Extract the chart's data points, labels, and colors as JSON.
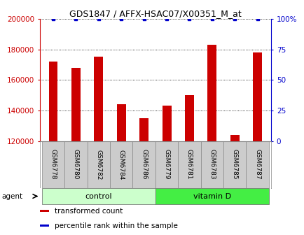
{
  "title": "GDS1847 / AFFX-HSAC07/X00351_M_at",
  "samples": [
    "GSM6778",
    "GSM6780",
    "GSM6782",
    "GSM6784",
    "GSM6786",
    "GSM6779",
    "GSM6781",
    "GSM6783",
    "GSM6785",
    "GSM6787"
  ],
  "bar_values": [
    172000,
    168000,
    175000,
    144000,
    135000,
    143000,
    150000,
    183000,
    124000,
    178000
  ],
  "percentile_values": [
    100,
    100,
    100,
    100,
    100,
    100,
    100,
    100,
    100,
    100
  ],
  "groups": [
    {
      "label": "control",
      "start": 0,
      "end": 4,
      "color": "#ccffcc"
    },
    {
      "label": "vitamin D",
      "start": 5,
      "end": 9,
      "color": "#44ee44"
    }
  ],
  "bar_color": "#cc0000",
  "dot_color": "#0000cc",
  "ylim_left": [
    120000,
    200000
  ],
  "ylim_right": [
    0,
    100
  ],
  "yticks_left": [
    120000,
    140000,
    160000,
    180000,
    200000
  ],
  "yticks_right": [
    0,
    25,
    50,
    75,
    100
  ],
  "ytick_labels_left": [
    "120000",
    "140000",
    "160000",
    "180000",
    "200000"
  ],
  "ytick_labels_right": [
    "0",
    "25",
    "50",
    "75",
    "100%"
  ],
  "legend_items": [
    {
      "color": "#cc0000",
      "label": "transformed count"
    },
    {
      "color": "#0000cc",
      "label": "percentile rank within the sample"
    }
  ],
  "agent_label": "agent",
  "label_bg": "#cccccc",
  "background_color": "#ffffff"
}
